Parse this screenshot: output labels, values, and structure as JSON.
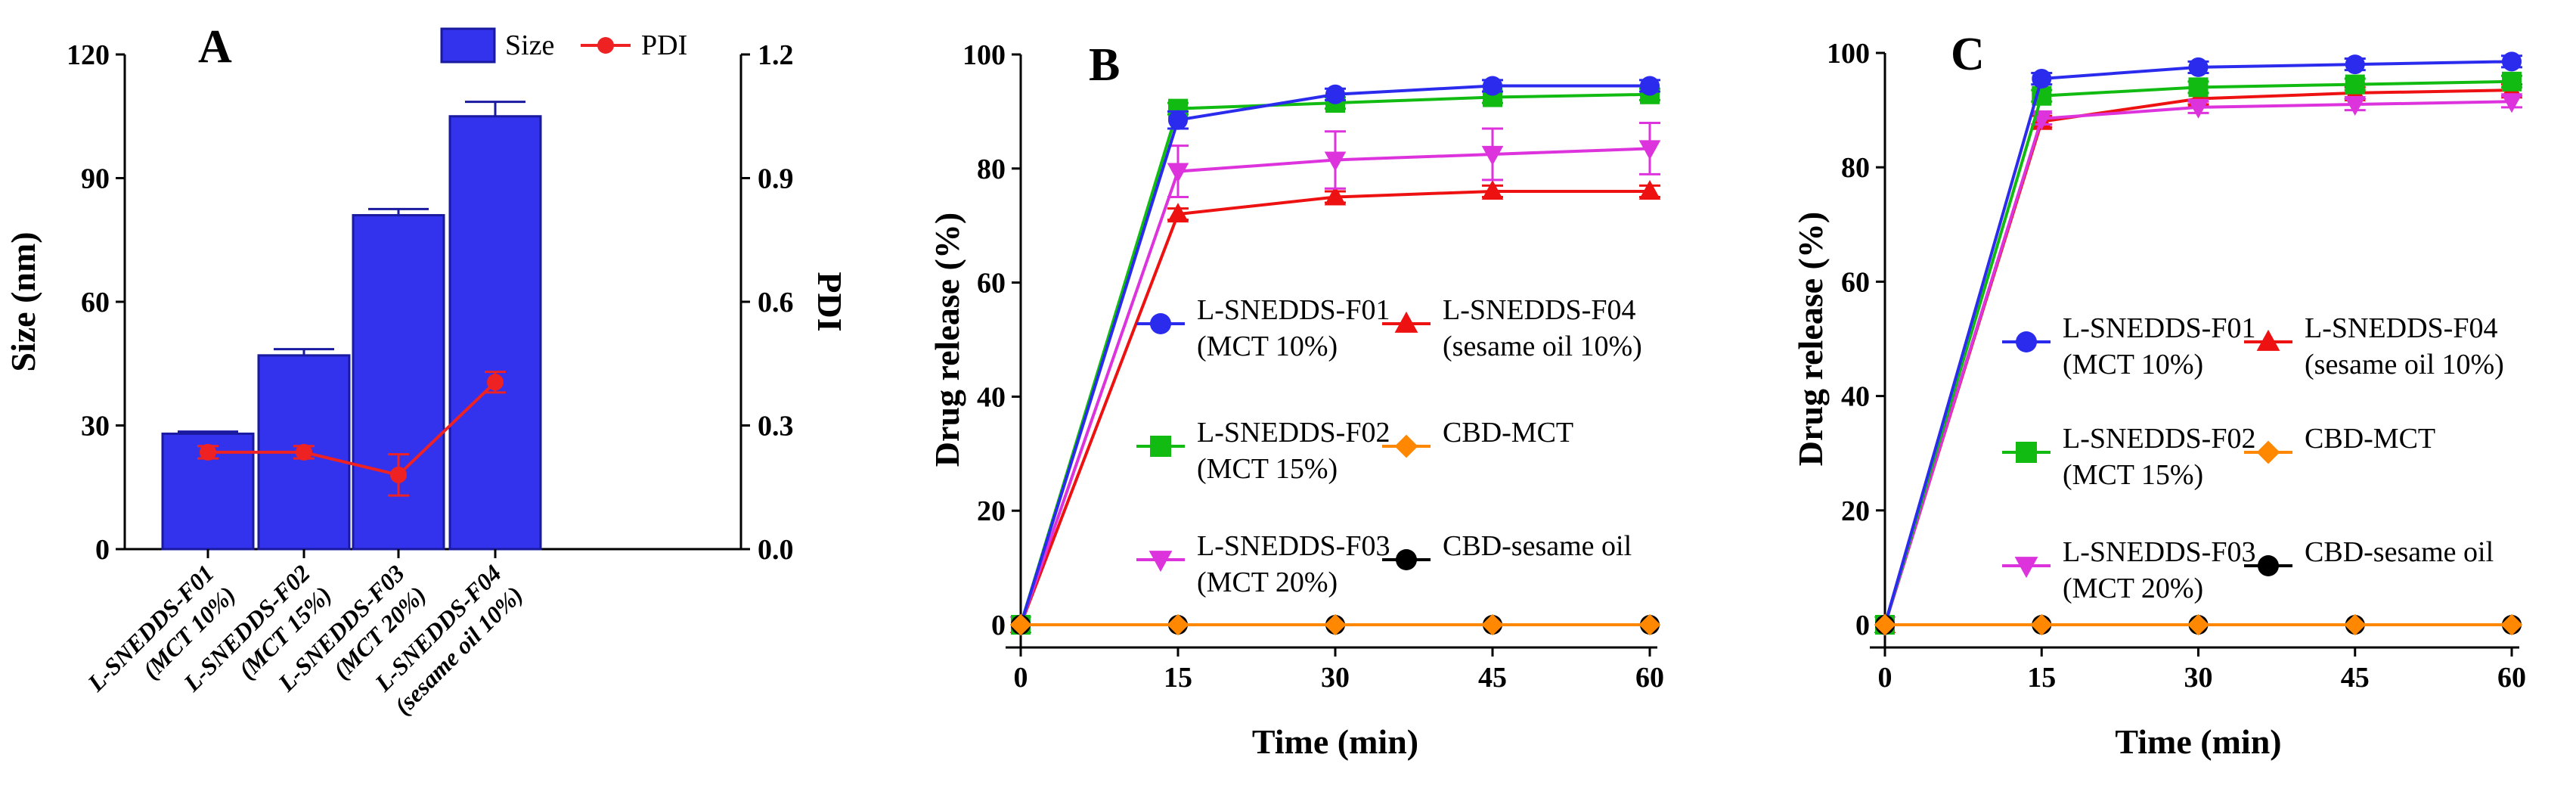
{
  "chart_data": [
    {
      "panel": "A",
      "type": "bar+line",
      "categories": [
        [
          "L-SNEDDS-F01",
          "(MCT 10%)"
        ],
        [
          "L-SNEDDS-F02",
          "(MCT 15%)"
        ],
        [
          "L-SNEDDS-F03",
          "(MCT 20%)"
        ],
        [
          "L-SNEDDS-F04",
          "(sesame oil 10%)"
        ]
      ],
      "series": [
        {
          "name": "Size",
          "kind": "bar",
          "axis": "left",
          "values": [
            28,
            47,
            81,
            105
          ],
          "errors": [
            0.5,
            1.5,
            1.5,
            3.5
          ],
          "color": "#3333ee"
        },
        {
          "name": "PDI",
          "kind": "line",
          "axis": "right",
          "values": [
            0.235,
            0.235,
            0.18,
            0.405
          ],
          "errors": [
            0.015,
            0.015,
            0.05,
            0.025
          ],
          "color": "#ee2222"
        }
      ],
      "ylabel": "Size (nm)",
      "ylim": [
        0,
        120
      ],
      "yticks": [
        "0",
        "30",
        "60",
        "90",
        "120"
      ],
      "y2label": "PDI",
      "y2lim": [
        0,
        1.2
      ],
      "y2ticks": [
        "0.0",
        "0.3",
        "0.6",
        "0.9",
        "1.2"
      ],
      "legend": [
        "Size",
        "PDI"
      ],
      "legend_position": "top-right"
    },
    {
      "panel": "B",
      "type": "line",
      "x": [
        0,
        15,
        30,
        45,
        60
      ],
      "xticks": [
        "0",
        "15",
        "30",
        "45",
        "60"
      ],
      "xlabel": "Time (min)",
      "ylabel": "Drug release (%)",
      "ylim": [
        0,
        100
      ],
      "yticks": [
        "0",
        "20",
        "40",
        "60",
        "80",
        "100"
      ],
      "series": [
        {
          "name": "L-SNEDDS-F01",
          "sub": "(MCT 10%)",
          "values": [
            0,
            88.5,
            93,
            94.5,
            94.5
          ],
          "errors": [
            0,
            1.5,
            1,
            1,
            1
          ],
          "color": "#2b2bee",
          "marker": "circle"
        },
        {
          "name": "L-SNEDDS-F02",
          "sub": "(MCT 15%)",
          "values": [
            0,
            90.5,
            91.5,
            92.5,
            93
          ],
          "errors": [
            0,
            1,
            1,
            1,
            1
          ],
          "color": "#11bb11",
          "marker": "square"
        },
        {
          "name": "L-SNEDDS-F03",
          "sub": "(MCT 20%)",
          "values": [
            0,
            79.5,
            81.5,
            82.5,
            83.5
          ],
          "errors": [
            0,
            4.5,
            5,
            4.5,
            4.5
          ],
          "color": "#dd33dd",
          "marker": "triangle-down"
        },
        {
          "name": "L-SNEDDS-F04",
          "sub": "(sesame oil 10%)",
          "values": [
            0,
            72,
            75,
            76,
            76
          ],
          "errors": [
            0,
            1,
            1,
            1,
            1
          ],
          "color": "#ee1111",
          "marker": "triangle-up"
        },
        {
          "name": "CBD-MCT",
          "sub": "",
          "values": [
            0,
            0,
            0,
            0,
            0
          ],
          "errors": [
            0,
            0,
            0,
            0,
            0
          ],
          "color": "#ff8800",
          "marker": "diamond"
        },
        {
          "name": "CBD-sesame oil",
          "sub": "",
          "values": [
            0,
            0,
            0,
            0,
            0
          ],
          "errors": [
            0,
            0,
            0,
            0,
            0
          ],
          "color": "#000000",
          "marker": "circle"
        }
      ]
    },
    {
      "panel": "C",
      "type": "line",
      "x": [
        0,
        15,
        30,
        45,
        60
      ],
      "xticks": [
        "0",
        "15",
        "30",
        "45",
        "60"
      ],
      "xlabel": "Time (min)",
      "ylabel": "Drug release (%)",
      "ylim": [
        0,
        100
      ],
      "yticks": [
        "0",
        "20",
        "40",
        "60",
        "80",
        "100"
      ],
      "series": [
        {
          "name": "L-SNEDDS-F01",
          "sub": "(MCT 10%)",
          "values": [
            0,
            95.5,
            97.5,
            98,
            98.5
          ],
          "errors": [
            0,
            1,
            1,
            1,
            1
          ],
          "color": "#2b2bee",
          "marker": "circle"
        },
        {
          "name": "L-SNEDDS-F02",
          "sub": "(MCT 15%)",
          "values": [
            0,
            92.5,
            94,
            94.5,
            95
          ],
          "errors": [
            0,
            1,
            1,
            1,
            1
          ],
          "color": "#11bb11",
          "marker": "square"
        },
        {
          "name": "L-SNEDDS-F03",
          "sub": "(MCT 20%)",
          "values": [
            0,
            88.5,
            90.5,
            91,
            91.5
          ],
          "errors": [
            0,
            1,
            1,
            1,
            1
          ],
          "color": "#dd33dd",
          "marker": "triangle-down"
        },
        {
          "name": "L-SNEDDS-F04",
          "sub": "(sesame oil 10%)",
          "values": [
            0,
            88,
            92,
            93,
            93.5
          ],
          "errors": [
            0,
            1,
            1,
            1,
            1
          ],
          "color": "#ee1111",
          "marker": "triangle-up"
        },
        {
          "name": "CBD-MCT",
          "sub": "",
          "values": [
            0,
            0,
            0,
            0,
            0
          ],
          "errors": [
            0,
            0,
            0,
            0,
            0
          ],
          "color": "#ff8800",
          "marker": "diamond"
        },
        {
          "name": "CBD-sesame oil",
          "sub": "",
          "values": [
            0,
            0,
            0,
            0,
            0
          ],
          "errors": [
            0,
            0,
            0,
            0,
            0
          ],
          "color": "#000000",
          "marker": "circle"
        }
      ]
    }
  ]
}
